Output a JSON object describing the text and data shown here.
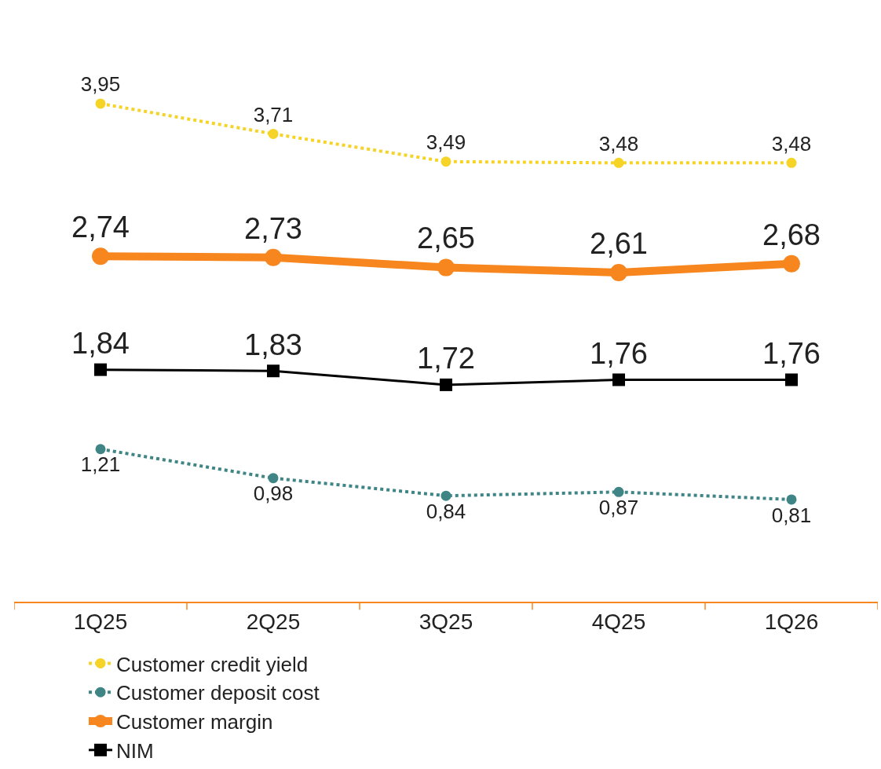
{
  "chart_data": {
    "type": "line",
    "categories": [
      "1Q25",
      "2Q25",
      "3Q25",
      "4Q25",
      "1Q26"
    ],
    "series": [
      {
        "name": "Customer credit yield",
        "color": "#f5d327",
        "values": [
          3.95,
          3.71,
          3.49,
          3.48,
          3.48
        ],
        "value_labels": [
          "3,95",
          "3,71",
          "3,49",
          "3,48",
          "3,48"
        ],
        "marker": "circle",
        "line_style": "dotted"
      },
      {
        "name": "Customer deposit cost",
        "color": "#3f8585",
        "values": [
          1.21,
          0.98,
          0.84,
          0.87,
          0.81
        ],
        "value_labels": [
          "1,21",
          "0,98",
          "0,84",
          "0,87",
          "0,81"
        ],
        "marker": "circle",
        "line_style": "dotted"
      },
      {
        "name": "Customer margin",
        "color": "#f7861e",
        "values": [
          2.74,
          2.73,
          2.65,
          2.61,
          2.68
        ],
        "value_labels": [
          "2,74",
          "2,73",
          "2,65",
          "2,61",
          "2,68"
        ],
        "marker": "circle",
        "line_style": "solid"
      },
      {
        "name": "NIM",
        "color": "#000000",
        "values": [
          1.84,
          1.83,
          1.72,
          1.76,
          1.76
        ],
        "value_labels": [
          "1,84",
          "1,83",
          "1,72",
          "1,76",
          "1,76"
        ],
        "marker": "square",
        "line_style": "solid"
      }
    ],
    "tick_labels": "x",
    "legend": "bottom"
  }
}
